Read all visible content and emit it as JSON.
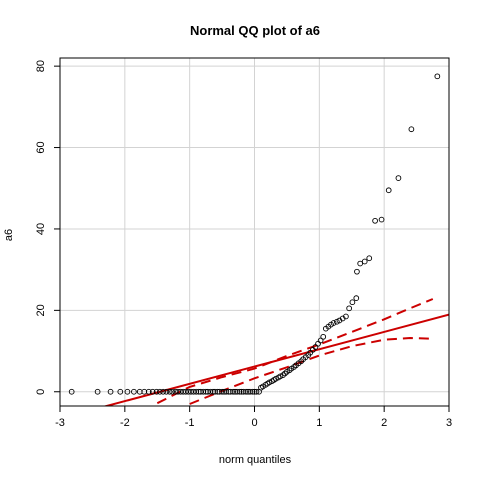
{
  "chart_data": {
    "type": "scatter",
    "title": "Normal QQ plot of  a6",
    "xlabel": "norm quantiles",
    "ylabel": "a6",
    "xlim": [
      -3,
      3
    ],
    "ylim": [
      -3.5,
      82
    ],
    "x_ticks": [
      "-3",
      "-2",
      "-1",
      "0",
      "1",
      "2",
      "3"
    ],
    "y_ticks": [
      "0",
      "20",
      "40",
      "60",
      "80"
    ],
    "grid": true,
    "colors": {
      "points": "#000000",
      "reference_line": "#cc0000",
      "grid": "#d3d3d3"
    },
    "series": [
      {
        "points": [
          [
            -2.82,
            0.0
          ],
          [
            -2.42,
            0.0
          ],
          [
            -2.22,
            0.0
          ],
          [
            -2.07,
            0.0
          ],
          [
            -1.96,
            0.0
          ],
          [
            -1.86,
            0.0
          ],
          [
            -1.77,
            0.0
          ],
          [
            -1.7,
            0.0
          ],
          [
            -1.63,
            0.0
          ],
          [
            -1.57,
            0.0
          ],
          [
            -1.51,
            0.0
          ],
          [
            -1.46,
            0.0
          ],
          [
            -1.41,
            0.0
          ],
          [
            -1.36,
            0.0
          ],
          [
            -1.31,
            0.0
          ],
          [
            -1.27,
            0.0
          ],
          [
            -1.22,
            0.0
          ],
          [
            -1.18,
            0.0
          ],
          [
            -1.14,
            0.0
          ],
          [
            -1.1,
            0.0
          ],
          [
            -1.06,
            0.0
          ],
          [
            -1.02,
            0.0
          ],
          [
            -0.98,
            0.0
          ],
          [
            -0.94,
            0.0
          ],
          [
            -0.9,
            0.0
          ],
          [
            -0.86,
            0.0
          ],
          [
            -0.83,
            0.0
          ],
          [
            -0.79,
            0.0
          ],
          [
            -0.75,
            0.0
          ],
          [
            -0.72,
            0.0
          ],
          [
            -0.68,
            0.0
          ],
          [
            -0.64,
            0.0
          ],
          [
            -0.61,
            0.0
          ],
          [
            -0.57,
            0.0
          ],
          [
            -0.54,
            0.0
          ],
          [
            -0.5,
            0.0
          ],
          [
            -0.47,
            0.0
          ],
          [
            -0.44,
            0.0
          ],
          [
            -0.4,
            0.0
          ],
          [
            -0.37,
            0.0
          ],
          [
            -0.33,
            0.0
          ],
          [
            -0.3,
            0.0
          ],
          [
            -0.27,
            0.0
          ],
          [
            -0.23,
            0.0
          ],
          [
            -0.2,
            0.0
          ],
          [
            -0.17,
            0.0
          ],
          [
            -0.13,
            0.0
          ],
          [
            -0.1,
            0.0
          ],
          [
            -0.07,
            0.0
          ],
          [
            -0.03,
            0.0
          ],
          [
            0.0,
            0.0
          ],
          [
            0.03,
            0.0
          ],
          [
            0.07,
            0.0
          ],
          [
            0.1,
            1.0
          ],
          [
            0.13,
            1.3
          ],
          [
            0.17,
            1.7
          ],
          [
            0.2,
            2.0
          ],
          [
            0.23,
            2.3
          ],
          [
            0.27,
            2.6
          ],
          [
            0.3,
            2.9
          ],
          [
            0.33,
            3.2
          ],
          [
            0.37,
            3.5
          ],
          [
            0.4,
            3.8
          ],
          [
            0.44,
            4.1
          ],
          [
            0.47,
            4.5
          ],
          [
            0.5,
            4.9
          ],
          [
            0.54,
            5.3
          ],
          [
            0.57,
            5.7
          ],
          [
            0.61,
            6.1
          ],
          [
            0.64,
            6.5
          ],
          [
            0.68,
            7.0
          ],
          [
            0.72,
            7.5
          ],
          [
            0.75,
            8.0
          ],
          [
            0.79,
            8.5
          ],
          [
            0.83,
            9.0
          ],
          [
            0.86,
            9.6
          ],
          [
            0.9,
            10.3
          ],
          [
            0.94,
            11.0
          ],
          [
            0.98,
            11.8
          ],
          [
            1.02,
            12.6
          ],
          [
            1.06,
            13.5
          ],
          [
            1.1,
            15.5
          ],
          [
            1.14,
            16.0
          ],
          [
            1.18,
            16.5
          ],
          [
            1.22,
            16.9
          ],
          [
            1.27,
            17.2
          ],
          [
            1.31,
            17.5
          ],
          [
            1.36,
            18.0
          ],
          [
            1.41,
            18.5
          ],
          [
            1.46,
            20.5
          ],
          [
            1.51,
            22.0
          ],
          [
            1.57,
            23.0
          ],
          [
            1.58,
            29.5
          ],
          [
            1.63,
            31.5
          ],
          [
            1.7,
            32.0
          ],
          [
            1.77,
            32.8
          ],
          [
            1.86,
            42.0
          ],
          [
            1.96,
            42.3
          ],
          [
            2.07,
            49.5
          ],
          [
            2.22,
            52.5
          ],
          [
            2.42,
            64.5
          ],
          [
            2.82,
            77.5
          ]
        ]
      }
    ],
    "reference_line": {
      "intercept": 6.2,
      "slope": 4.25
    },
    "confidence_upper": [
      [
        -1.5,
        -2.8
      ],
      [
        -1.0,
        1.2
      ],
      [
        -0.5,
        3.6
      ],
      [
        0.0,
        5.7
      ],
      [
        0.5,
        8.8
      ],
      [
        1.0,
        11.6
      ],
      [
        1.5,
        14.7
      ],
      [
        2.0,
        17.8
      ],
      [
        2.4,
        20.5
      ],
      [
        2.75,
        22.8
      ]
    ],
    "confidence_lower": [
      [
        -1.0,
        -3.0
      ],
      [
        -0.5,
        0.2
      ],
      [
        0.0,
        3.3
      ],
      [
        0.5,
        6.0
      ],
      [
        1.0,
        8.9
      ],
      [
        1.5,
        11.2
      ],
      [
        2.0,
        12.8
      ],
      [
        2.4,
        13.2
      ],
      [
        2.75,
        13.0
      ]
    ]
  }
}
